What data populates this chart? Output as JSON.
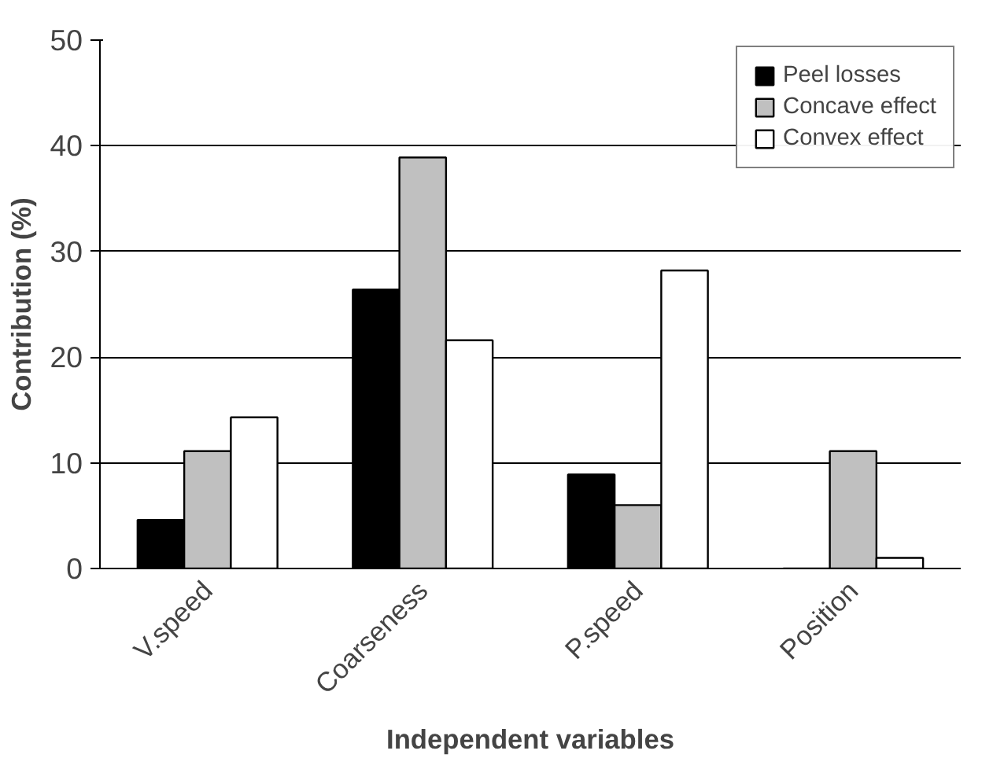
{
  "chart_data": {
    "type": "bar",
    "xlabel": "Independent variables",
    "ylabel": "Contribution (%)",
    "categories": [
      "V.speed",
      "Coarseness",
      "P.speed",
      "Position"
    ],
    "series": [
      {
        "name": "Peel losses",
        "color": "#000000",
        "values": [
          4.6,
          26.4,
          8.9,
          0
        ]
      },
      {
        "name": "Concave effect",
        "color": "#c0c0c0",
        "values": [
          11.1,
          38.9,
          6.0,
          11.1
        ]
      },
      {
        "name": "Convex effect",
        "color": "#ffffff",
        "values": [
          14.3,
          21.6,
          28.2,
          1.0
        ]
      }
    ],
    "ylim": [
      0,
      50
    ],
    "yticks": [
      0,
      10,
      20,
      30,
      40,
      50
    ],
    "grid": "y",
    "legend": "top right"
  }
}
